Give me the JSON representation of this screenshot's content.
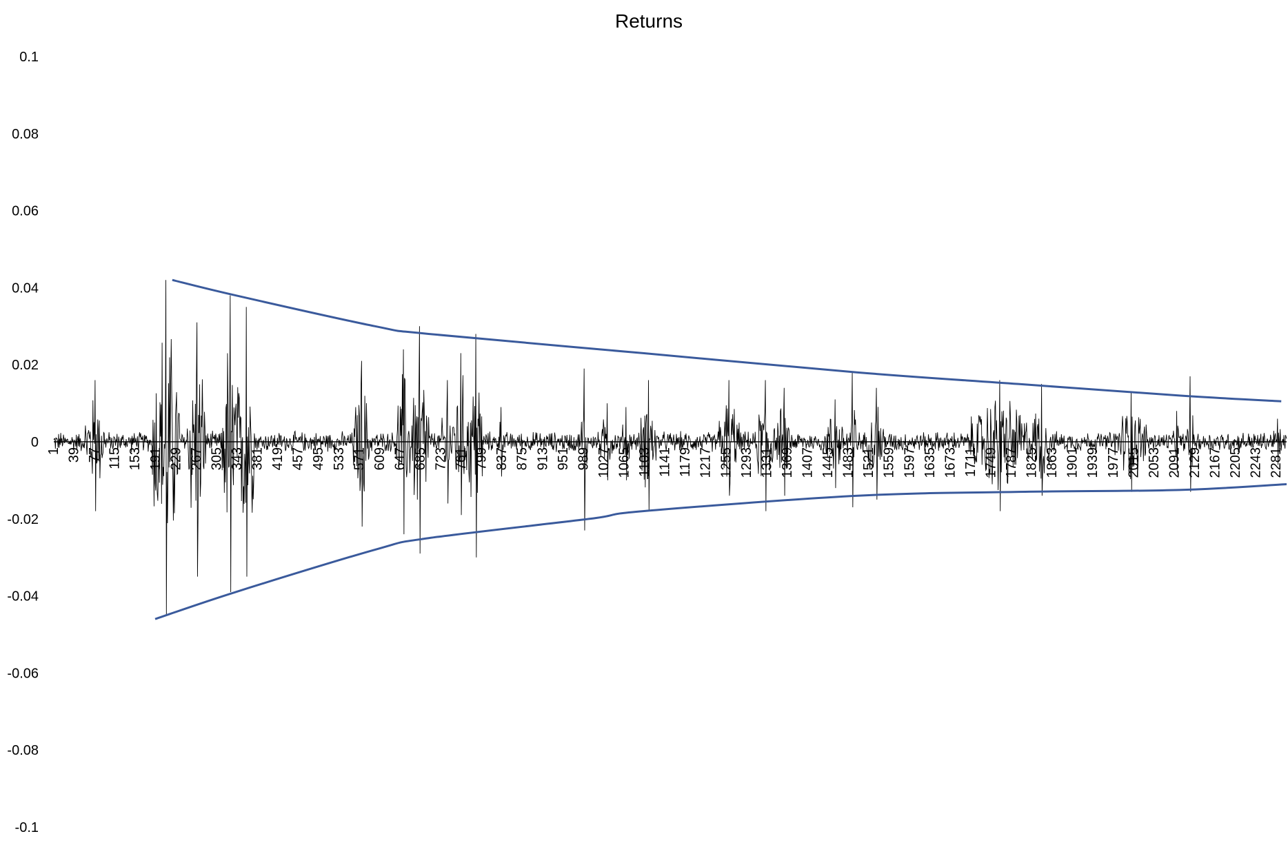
{
  "chart_data": {
    "type": "line",
    "title": "Returns",
    "xlabel": "",
    "ylabel": "",
    "ylim": [
      -0.1,
      0.1
    ],
    "y_ticks": [
      "0.1",
      "0.08",
      "0.06",
      "0.04",
      "0.02",
      "0",
      "-0.02",
      "-0.04",
      "-0.06",
      "-0.08",
      "-0.1"
    ],
    "xlim": [
      1,
      2300
    ],
    "x_ticks": [
      "1",
      "39",
      "77",
      "115",
      "153",
      "191",
      "229",
      "267",
      "305",
      "343",
      "381",
      "419",
      "457",
      "495",
      "533",
      "571",
      "609",
      "647",
      "685",
      "723",
      "761",
      "799",
      "837",
      "875",
      "913",
      "951",
      "989",
      "1027",
      "1065",
      "1103",
      "1141",
      "1179",
      "1217",
      "1255",
      "1293",
      "1331",
      "1369",
      "1407",
      "1445",
      "1483",
      "1521",
      "1559",
      "1597",
      "1635",
      "1673",
      "1711",
      "1749",
      "1787",
      "1825",
      "1863",
      "1901",
      "1939",
      "1977",
      "2015",
      "2053",
      "2091",
      "2129",
      "2167",
      "2205",
      "2243",
      "2281"
    ],
    "grid": false,
    "colors": {
      "returns": "#000000",
      "envelope": "#3a5a9c",
      "axis": "#000000"
    },
    "series": [
      {
        "type": "envelope",
        "upper": [
          [
            222,
            0.042
          ],
          [
            340,
            0.038
          ],
          [
            600,
            0.03
          ],
          [
            700,
            0.028
          ],
          [
            1100,
            0.023
          ],
          [
            1500,
            0.018
          ],
          [
            1800,
            0.015
          ],
          [
            2100,
            0.012
          ],
          [
            2290,
            0.0105
          ]
        ],
        "lower": [
          [
            190,
            -0.046
          ],
          [
            340,
            -0.039
          ],
          [
            600,
            -0.028
          ],
          [
            700,
            -0.025
          ],
          [
            1000,
            -0.02
          ],
          [
            1100,
            -0.018
          ],
          [
            1500,
            -0.014
          ],
          [
            1800,
            -0.013
          ],
          [
            2100,
            -0.0125
          ],
          [
            2300,
            -0.011
          ]
        ]
      },
      {
        "type": "returns_clusters",
        "base_amplitude": 0.003,
        "clusters": [
          [
            [
              60,
              95
            ],
            0.016,
            -0.018
          ],
          [
            [
              185,
              235
            ],
            0.042,
            -0.045
          ],
          [
            [
              250,
              285
            ],
            0.031,
            -0.035
          ],
          [
            [
              315,
              345
            ],
            0.038,
            -0.039
          ],
          [
            [
              345,
              375
            ],
            0.035,
            -0.035
          ],
          [
            [
              560,
              590
            ],
            0.021,
            -0.022
          ],
          [
            [
              640,
              665
            ],
            0.024,
            -0.024
          ],
          [
            [
              665,
              700
            ],
            0.03,
            -0.029
          ],
          [
            [
              725,
              745
            ],
            0.016,
            -0.016
          ],
          [
            [
              745,
              775
            ],
            0.023,
            -0.019
          ],
          [
            [
              775,
              800
            ],
            0.028,
            -0.03
          ],
          [
            [
              830,
              840
            ],
            0.009,
            -0.009
          ],
          [
            [
              985,
              995
            ],
            0.019,
            -0.023
          ],
          [
            [
              1020,
              1045
            ],
            0.01,
            -0.01
          ],
          [
            [
              1060,
              1075
            ],
            0.009,
            -0.01
          ],
          [
            [
              1095,
              1125
            ],
            0.016,
            -0.018
          ],
          [
            [
              1240,
              1280
            ],
            0.016,
            -0.014
          ],
          [
            [
              1310,
              1345
            ],
            0.016,
            -0.018
          ],
          [
            [
              1350,
              1375
            ],
            0.014,
            -0.014
          ],
          [
            [
              1440,
              1475
            ],
            0.011,
            -0.012
          ],
          [
            [
              1480,
              1500
            ],
            0.018,
            -0.017
          ],
          [
            [
              1520,
              1550
            ],
            0.014,
            -0.015
          ],
          [
            [
              1710,
              1820
            ],
            0.016,
            -0.018
          ],
          [
            [
              1825,
              1860
            ],
            0.015,
            -0.014
          ],
          [
            [
              1980,
              2040
            ],
            0.013,
            -0.013
          ],
          [
            [
              2090,
              2100
            ],
            0.008,
            -0.008
          ],
          [
            [
              2115,
              2125
            ],
            0.017,
            -0.013
          ],
          [
            [
              2270,
              2295
            ],
            0.006,
            -0.006
          ]
        ]
      }
    ]
  }
}
